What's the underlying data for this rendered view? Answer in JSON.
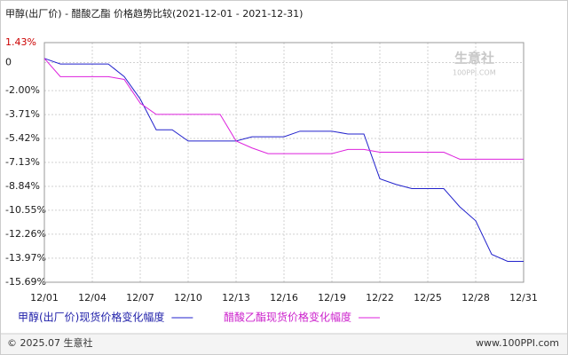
{
  "chart_data": {
    "type": "line",
    "title": "甲醇(出厂价) - 醋酸乙酯 价格趋势比较(2021-12-01 - 2021-12-31)",
    "categories": [
      "12/01",
      null,
      null,
      "12/04",
      null,
      null,
      "12/07",
      null,
      null,
      "12/10",
      null,
      null,
      "12/13",
      null,
      null,
      "12/16",
      null,
      null,
      "12/19",
      null,
      null,
      "12/22",
      null,
      null,
      "12/25",
      null,
      null,
      "12/28",
      null,
      null,
      "12/31"
    ],
    "series": [
      {
        "name": "甲醇(出厂价)现货价格变化幅度",
        "color": "#2222cc",
        "values": [
          0.3,
          -0.1,
          -0.1,
          -0.1,
          -0.1,
          -1.0,
          -2.6,
          -4.8,
          -4.8,
          -5.6,
          -5.6,
          -5.6,
          -5.6,
          -5.3,
          -5.3,
          -5.3,
          -4.9,
          -4.9,
          -4.9,
          -5.1,
          -5.1,
          -8.3,
          -8.7,
          -9.0,
          -9.0,
          -9.0,
          -10.3,
          -11.3,
          -13.7,
          -14.2,
          -14.2
        ]
      },
      {
        "name": "醋酸乙酯现货价格变化幅度",
        "color": "#dd22dd",
        "values": [
          0.3,
          -1.0,
          -1.0,
          -1.0,
          -1.0,
          -1.2,
          -2.9,
          -3.7,
          -3.7,
          -3.7,
          -3.7,
          -3.7,
          -5.6,
          -6.1,
          -6.5,
          -6.5,
          -6.5,
          -6.5,
          -6.5,
          -6.2,
          -6.2,
          -6.4,
          -6.4,
          -6.4,
          -6.4,
          -6.4,
          -6.9,
          -6.9,
          -6.9,
          -6.9,
          -6.9
        ]
      }
    ],
    "ylim": [
      -15.69,
      1.43
    ],
    "yticks": [
      {
        "value": 1.43,
        "label": "1.43%"
      },
      0,
      {
        "value": -2.0,
        "label": "-2.00%"
      },
      {
        "value": -3.71,
        "label": "-3.71%"
      },
      {
        "value": -5.42,
        "label": "-5.42%"
      },
      {
        "value": -7.13,
        "label": "-7.13%"
      },
      {
        "value": -8.84,
        "label": "-8.84%"
      },
      {
        "value": -10.55,
        "label": "-10.55%"
      },
      {
        "value": -12.26,
        "label": "-12.26%"
      },
      {
        "value": -13.97,
        "label": "-13.97%"
      },
      {
        "value": -15.69,
        "label": "-15.69%"
      }
    ],
    "grid": true
  },
  "watermark": {
    "name": "生意社",
    "site": "100PPI.COM"
  },
  "footer": {
    "left": "© 2025.07 生意社",
    "right": "www.100PPI.com"
  }
}
